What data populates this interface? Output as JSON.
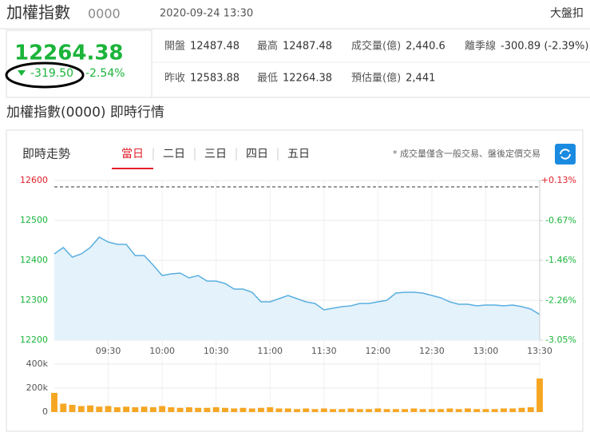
{
  "header": {
    "title": "加權指數",
    "code": "0000",
    "datetime": "2020-09-24 13:30",
    "link": "大盤扣"
  },
  "quote": {
    "price": "12264.38",
    "change": "-319.50",
    "change_percent": "-2.54%"
  },
  "stats": [
    [
      {
        "label": "開盤",
        "value": "12487.48"
      },
      {
        "label": "最高",
        "value": "12487.48"
      },
      {
        "label": "成交量(億)",
        "value": "2,440.6"
      },
      {
        "label": "離季線",
        "value": "-300.89 (-2.39%)"
      }
    ],
    [
      {
        "label": "昨收",
        "value": "12583.88"
      },
      {
        "label": "最低",
        "value": "12264.38"
      },
      {
        "label": "預估量(億)",
        "value": "2,441"
      }
    ]
  ],
  "section_title": "加權指數(0000) 即時行情",
  "panel": {
    "title": "即時走勢",
    "tabs": [
      "當日",
      "二日",
      "三日",
      "四日",
      "五日"
    ],
    "active_tab": 0,
    "note": "* 成交量僅含一般交易、盤後定價交易"
  },
  "chart_data": {
    "type": "line",
    "color": "#5aafe0",
    "fill": "#e4f2fb",
    "categories": [
      "09:00",
      "09:05",
      "09:10",
      "09:15",
      "09:20",
      "09:25",
      "09:30",
      "09:35",
      "09:40",
      "09:45",
      "09:50",
      "09:55",
      "10:00",
      "10:05",
      "10:10",
      "10:15",
      "10:20",
      "10:25",
      "10:30",
      "10:35",
      "10:40",
      "10:45",
      "10:50",
      "10:55",
      "11:00",
      "11:05",
      "11:10",
      "11:15",
      "11:20",
      "11:25",
      "11:30",
      "11:35",
      "11:40",
      "11:45",
      "11:50",
      "11:55",
      "12:00",
      "12:05",
      "12:10",
      "12:15",
      "12:20",
      "12:25",
      "12:30",
      "12:35",
      "12:40",
      "12:45",
      "12:50",
      "12:55",
      "13:00",
      "13:05",
      "13:10",
      "13:15",
      "13:20",
      "13:25",
      "13:30"
    ],
    "values": [
      12416,
      12432,
      12408,
      12416,
      12432,
      12458,
      12446,
      12440,
      12440,
      12412,
      12412,
      12388,
      12362,
      12366,
      12368,
      12356,
      12362,
      12348,
      12348,
      12342,
      12328,
      12328,
      12320,
      12296,
      12296,
      12304,
      12312,
      12304,
      12296,
      12292,
      12276,
      12280,
      12284,
      12286,
      12292,
      12292,
      12296,
      12300,
      12318,
      12320,
      12320,
      12318,
      12312,
      12306,
      12296,
      12290,
      12290,
      12286,
      12288,
      12288,
      12286,
      12288,
      12284,
      12278,
      12264.38
    ],
    "ylim": [
      12200,
      12600
    ],
    "yticks": [
      12200,
      12300,
      12400,
      12500,
      12600
    ],
    "y2lim": [
      -3.05,
      0.13
    ],
    "y2ticks": [
      {
        "value": -3.05,
        "label": "-3.05%"
      },
      {
        "value": -2.26,
        "label": "-2.26%"
      },
      {
        "value": -1.46,
        "label": "-1.46%"
      },
      {
        "value": -0.67,
        "label": "-0.67%"
      },
      {
        "value": 0.13,
        "label": "+0.13%"
      }
    ],
    "reference_line": 12583.88,
    "xticks": [
      "09:30",
      "10:00",
      "10:30",
      "11:00",
      "11:30",
      "12:00",
      "12:30",
      "13:00",
      "13:30"
    ],
    "volume": {
      "type": "bar",
      "color": "#f5a623",
      "values": [
        160000,
        70000,
        60000,
        50000,
        55000,
        45000,
        50000,
        40000,
        45000,
        40000,
        45000,
        40000,
        50000,
        40000,
        35000,
        40000,
        35000,
        35000,
        40000,
        35000,
        30000,
        35000,
        30000,
        35000,
        40000,
        30000,
        30000,
        25000,
        30000,
        25000,
        30000,
        25000,
        25000,
        30000,
        25000,
        25000,
        30000,
        25000,
        25000,
        25000,
        30000,
        25000,
        25000,
        25000,
        30000,
        25000,
        30000,
        25000,
        25000,
        25000,
        30000,
        30000,
        35000,
        40000,
        280000
      ],
      "ylim": [
        0,
        400000
      ],
      "yticks": [
        0,
        {
          "value": 200000,
          "label": "200k"
        },
        {
          "value": 400000,
          "label": "400k"
        }
      ]
    }
  }
}
